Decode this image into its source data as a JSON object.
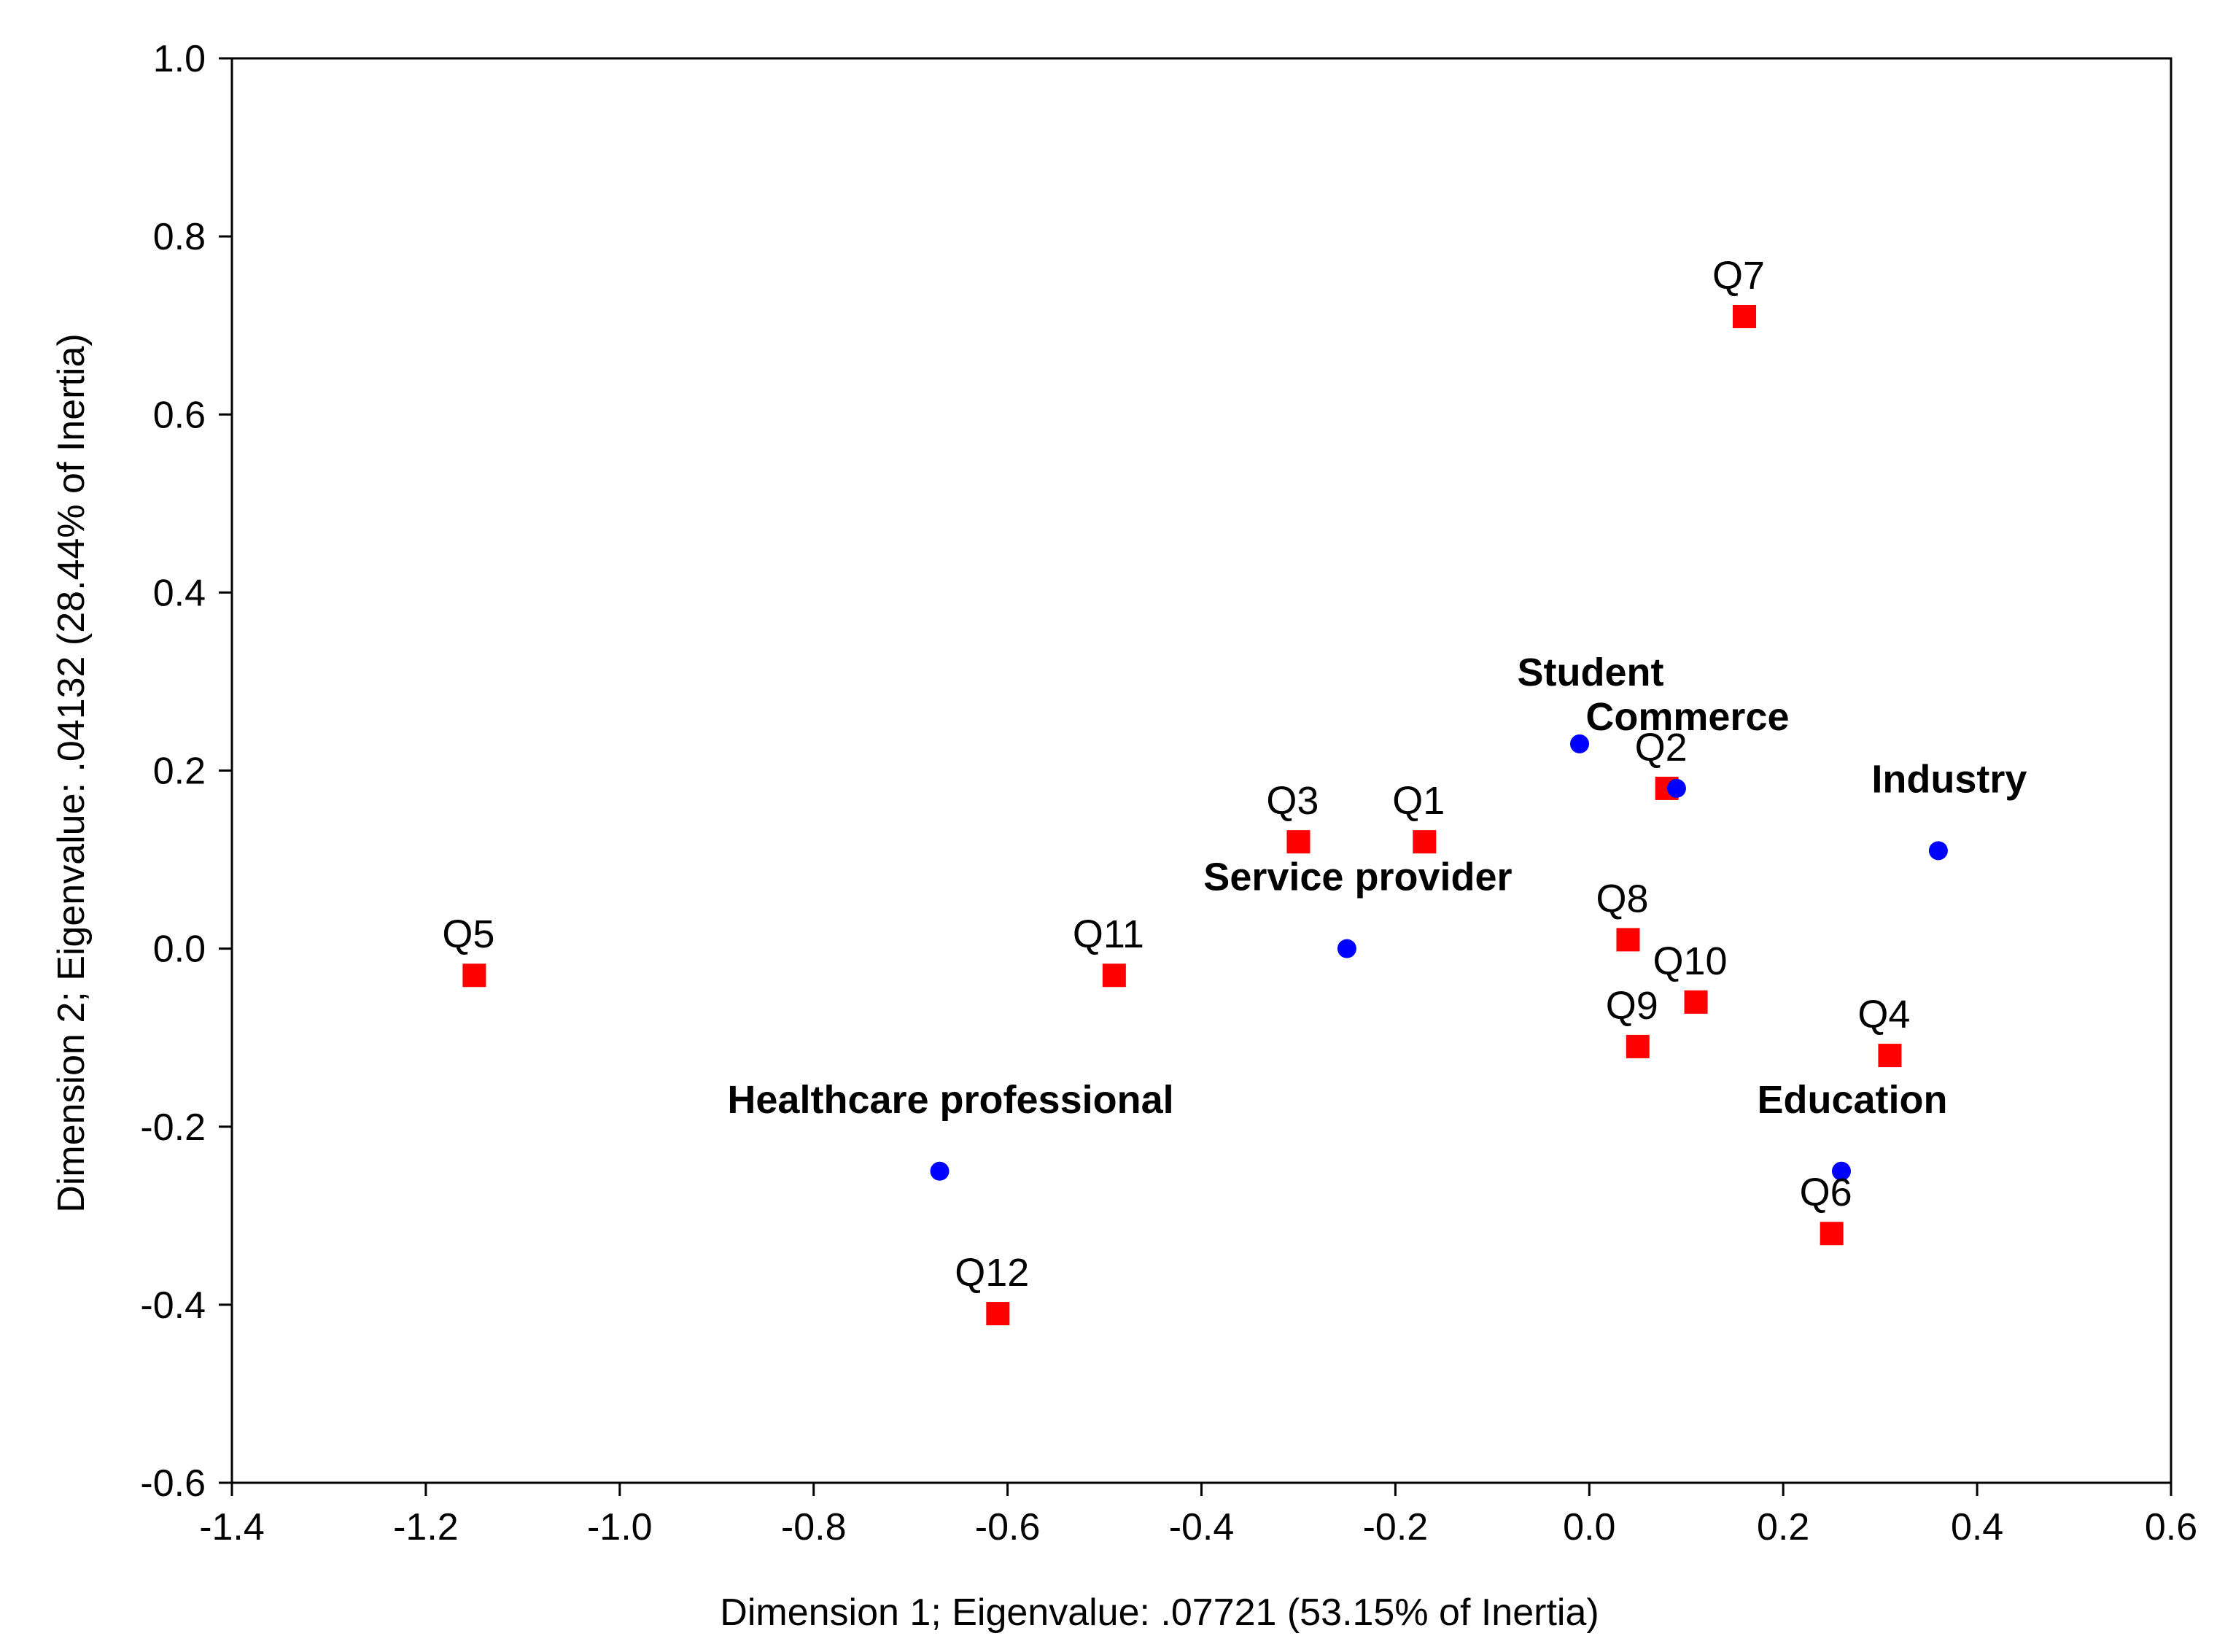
{
  "chart_data": {
    "type": "scatter",
    "xlabel": "Dimension 1; Eigenvalue: .07721 (53.15% of Inertia)",
    "ylabel": "Dimension 2; Eigenvalue: .04132 (28.44% of Inertia)",
    "xlim": [
      -1.4,
      0.6
    ],
    "ylim": [
      -0.6,
      1.0
    ],
    "xticks": [
      "-1.4",
      "-1.2",
      "-1.0",
      "-0.8",
      "-0.6",
      "-0.4",
      "-0.2",
      "0.0",
      "0.2",
      "0.4",
      "0.6"
    ],
    "yticks": [
      "-0.6",
      "-0.4",
      "-0.2",
      "0.0",
      "0.2",
      "0.4",
      "0.6",
      "0.8",
      "1.0"
    ],
    "grid": false,
    "colors": {
      "questions": "#ff0000",
      "groups": "#0000ff"
    },
    "series": [
      {
        "marker": "square",
        "points": [
          {
            "label": "Q1",
            "x": -0.17,
            "y": 0.12
          },
          {
            "label": "Q2",
            "x": 0.08,
            "y": 0.18
          },
          {
            "label": "Q3",
            "x": -0.3,
            "y": 0.12
          },
          {
            "label": "Q4",
            "x": 0.31,
            "y": -0.12
          },
          {
            "label": "Q5",
            "x": -1.15,
            "y": -0.03
          },
          {
            "label": "Q6",
            "x": 0.25,
            "y": -0.32
          },
          {
            "label": "Q7",
            "x": 0.16,
            "y": 0.71
          },
          {
            "label": "Q8",
            "x": 0.04,
            "y": 0.01
          },
          {
            "label": "Q9",
            "x": 0.05,
            "y": -0.11
          },
          {
            "label": "Q10",
            "x": 0.11,
            "y": -0.06
          },
          {
            "label": "Q11",
            "x": -0.49,
            "y": -0.03
          },
          {
            "label": "Q12",
            "x": -0.61,
            "y": -0.41
          }
        ]
      },
      {
        "marker": "circle",
        "points": [
          {
            "label": "Student",
            "x": -0.01,
            "y": 0.23
          },
          {
            "label": "Commerce",
            "x": 0.09,
            "y": 0.18
          },
          {
            "label": "Industry",
            "x": 0.36,
            "y": 0.11
          },
          {
            "label": "Service provider",
            "x": -0.25,
            "y": 0.0
          },
          {
            "label": "Healthcare professional",
            "x": -0.67,
            "y": -0.25
          },
          {
            "label": "Education",
            "x": 0.26,
            "y": -0.25
          }
        ]
      }
    ]
  }
}
